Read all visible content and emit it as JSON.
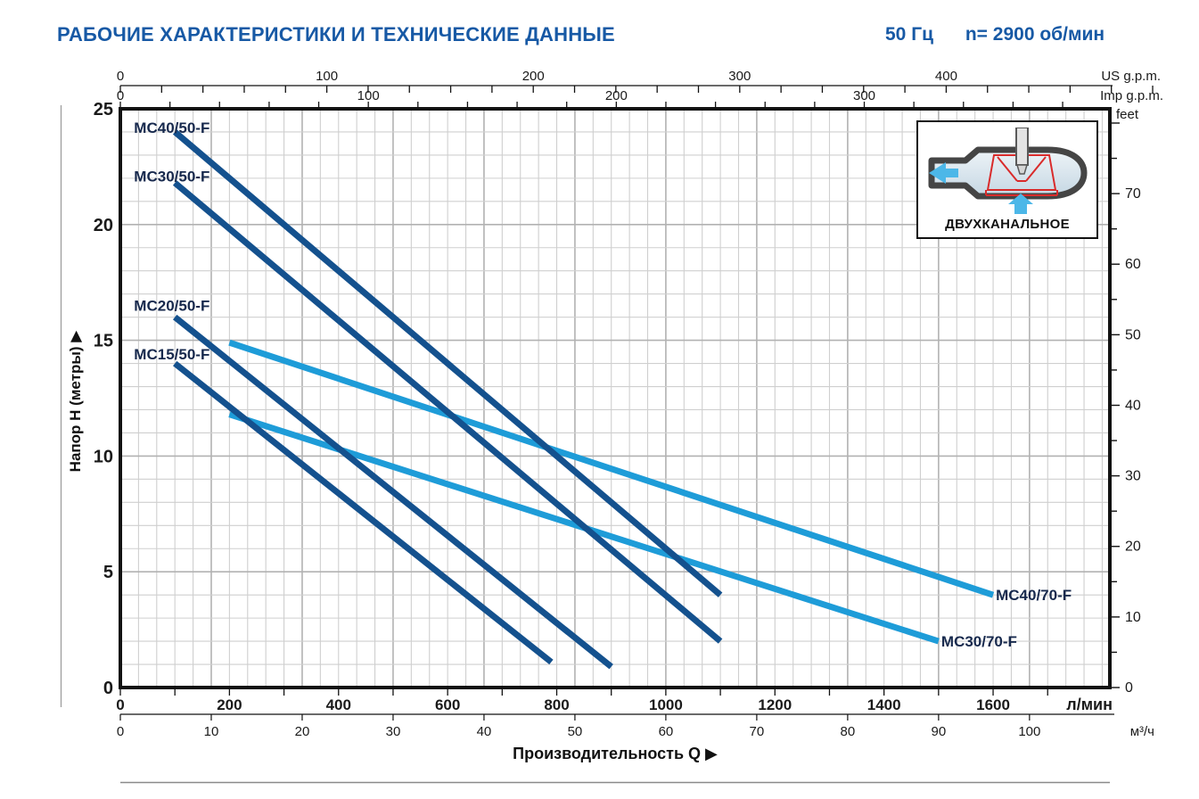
{
  "header": {
    "title": "РАБОЧИЕ ХАРАКТЕРИСТИКИ И ТЕХНИЧЕСКИЕ ДАННЫЕ",
    "frequency": "50 Гц",
    "speed": "n= 2900 об/мин",
    "accent_color": "#1759a5"
  },
  "inset": {
    "label": "ДВУХКАНАЛЬНОЕ"
  },
  "chart_data": {
    "type": "line",
    "title": "",
    "xlabel": "Производительность Q  ▶",
    "ylabel": "Напор H (метры)  ▶",
    "x_axis_primary": {
      "unit": "л/мин",
      "ticks": [
        0,
        200,
        400,
        600,
        800,
        1000,
        1200,
        1400,
        1600
      ],
      "range": [
        0,
        1815
      ]
    },
    "x_axis_secondary": {
      "unit": "м³/ч",
      "ticks": [
        0,
        10,
        20,
        30,
        40,
        50,
        60,
        70,
        80,
        90,
        100
      ]
    },
    "x_axis_us": {
      "unit": "US g.p.m.",
      "ticks": [
        0,
        100,
        200,
        300,
        400
      ]
    },
    "x_axis_imp": {
      "unit": "Imp g.p.m.",
      "ticks": [
        0,
        100,
        200,
        300
      ]
    },
    "y_axis": {
      "unit": "метры",
      "ticks": [
        0,
        5,
        10,
        15,
        20,
        25
      ],
      "range": [
        0,
        25
      ]
    },
    "y_axis_right": {
      "unit": "feet",
      "ticks": [
        0,
        10,
        20,
        30,
        40,
        50,
        60,
        70
      ]
    },
    "conversions": {
      "lmin_per_usgpm": 3.785,
      "lmin_per_impgpm": 4.546,
      "lmin_per_m3h": 16.667,
      "m_per_foot": 0.3048
    },
    "grid": {
      "minor_m": 1,
      "major_m": 5,
      "minor_m3h": 2,
      "major_m3h": 10,
      "on": true
    },
    "series": [
      {
        "name": "MC40/50-F",
        "color": "#14518e",
        "points": [
          [
            100,
            24.0
          ],
          [
            1100,
            4.0
          ]
        ],
        "label_at": [
          25,
          24.2
        ],
        "label_anchor": "start"
      },
      {
        "name": "MC30/50-F",
        "color": "#14518e",
        "points": [
          [
            100,
            21.8
          ],
          [
            1100,
            2.0
          ]
        ],
        "label_at": [
          25,
          22.1
        ],
        "label_anchor": "start"
      },
      {
        "name": "MC20/50-F",
        "color": "#14518e",
        "points": [
          [
            100,
            16.0
          ],
          [
            900,
            0.9
          ]
        ],
        "label_at": [
          25,
          16.5
        ],
        "label_anchor": "start"
      },
      {
        "name": "MC15/50-F",
        "color": "#14518e",
        "points": [
          [
            100,
            14.0
          ],
          [
            790,
            1.1
          ]
        ],
        "label_at": [
          25,
          14.4
        ],
        "label_anchor": "start"
      },
      {
        "name": "MC40/70-F",
        "color": "#1e9cd8",
        "points": [
          [
            200,
            14.9
          ],
          [
            1600,
            4.0
          ]
        ],
        "label_at": [
          1605,
          4.0
        ],
        "label_anchor": "start"
      },
      {
        "name": "MC30/70-F",
        "color": "#1e9cd8",
        "points": [
          [
            200,
            11.8
          ],
          [
            1500,
            2.0
          ]
        ],
        "label_at": [
          1505,
          2.0
        ],
        "label_anchor": "start"
      }
    ],
    "styles": {
      "curve_width": 7,
      "curve_label_color": "#17294d",
      "grid_minor_color": "#cfcfcf",
      "grid_major_color": "#b2b2b2",
      "axis_color": "#111111",
      "text_color": "#1a1a1a"
    }
  }
}
